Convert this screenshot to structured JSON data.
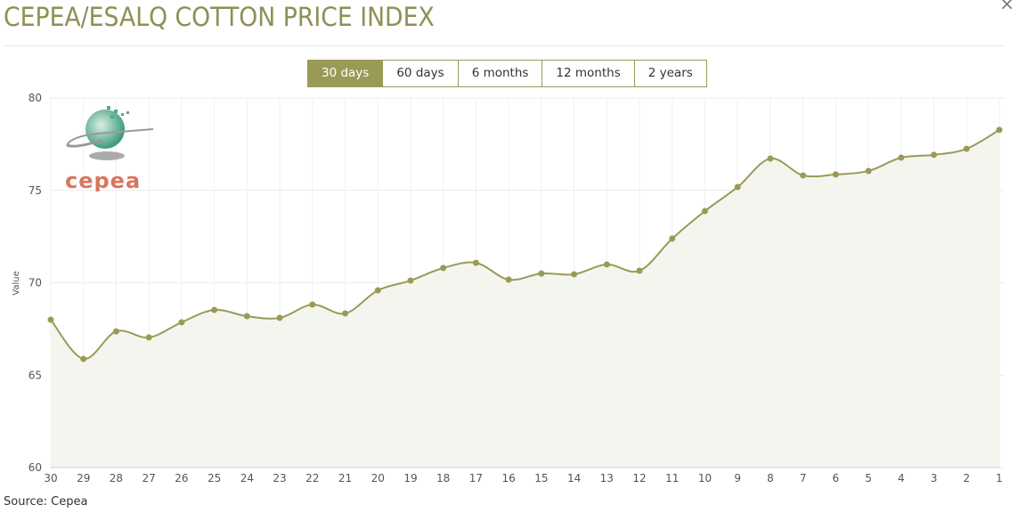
{
  "title": "CEPEA/ESALQ COTTON PRICE INDEX",
  "tabs": [
    {
      "label": "30 days",
      "active": true
    },
    {
      "label": "60 days"
    },
    {
      "label": "6 months"
    },
    {
      "label": "12 months"
    },
    {
      "label": "2 years"
    }
  ],
  "source": "Source: Cepea",
  "logo_text": "cepea",
  "colors": {
    "accent": "#9a9a57",
    "line": "#9a9a57",
    "fill": "#f5f5f0"
  },
  "chart_data": {
    "type": "line",
    "title": "CEPEA/ESALQ COTTON PRICE INDEX",
    "xlabel": "",
    "ylabel": "Value",
    "ylim": [
      60,
      80
    ],
    "yticks": [
      60,
      65,
      70,
      75,
      80
    ],
    "grid": true,
    "x": [
      "30",
      "29",
      "28",
      "27",
      "26",
      "25",
      "24",
      "23",
      "22",
      "21",
      "20",
      "19",
      "18",
      "17",
      "16",
      "15",
      "14",
      "13",
      "12",
      "11",
      "10",
      "9",
      "8",
      "7",
      "6",
      "5",
      "4",
      "3",
      "2",
      "1"
    ],
    "values": [
      68.0,
      65.88,
      67.37,
      67.04,
      67.86,
      68.53,
      68.19,
      68.1,
      68.82,
      68.34,
      69.59,
      70.12,
      70.8,
      71.08,
      70.17,
      70.5,
      70.46,
      70.99,
      70.65,
      72.39,
      73.88,
      75.18,
      76.72,
      75.81,
      75.86,
      76.05,
      76.77,
      76.92,
      77.25,
      78.27
    ]
  }
}
